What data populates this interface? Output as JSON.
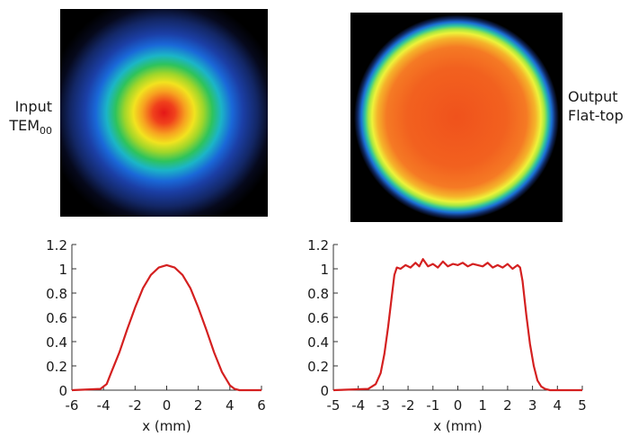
{
  "images": [
    {
      "label_line1": "Input",
      "label_line2_main": "TEM",
      "label_line2_sub": "00"
    },
    {
      "label_line1": "Output",
      "label_line2": "Flat-top"
    }
  ],
  "chart_data": [
    {
      "type": "line",
      "xlabel": "x (mm)",
      "xlim": [
        -6,
        6
      ],
      "ylim": [
        0,
        1.2
      ],
      "xticks": [
        -6,
        -4,
        -2,
        0,
        2,
        4,
        6
      ],
      "yticks": [
        0,
        0.2,
        0.4,
        0.6,
        0.8,
        1,
        1.2
      ],
      "ytick_labels": [
        "0",
        "0.2",
        "0.4",
        "0.6",
        "0.8",
        "1",
        "1.2"
      ],
      "line_color": "#d42020",
      "grid": false,
      "x": [
        -6,
        -4.2,
        -3.8,
        -3.5,
        -3,
        -2.5,
        -2,
        -1.5,
        -1,
        -0.5,
        0,
        0.5,
        1,
        1.5,
        2,
        2.5,
        3,
        3.5,
        4,
        4.3,
        4.6,
        6
      ],
      "y": [
        0,
        0.01,
        0.05,
        0.15,
        0.31,
        0.5,
        0.68,
        0.84,
        0.95,
        1.01,
        1.03,
        1.01,
        0.95,
        0.84,
        0.68,
        0.5,
        0.31,
        0.15,
        0.04,
        0.01,
        0,
        0
      ]
    },
    {
      "type": "line",
      "xlabel": "x (mm)",
      "xlim": [
        -5,
        5
      ],
      "ylim": [
        0,
        1.2
      ],
      "xticks": [
        -5,
        -4,
        -3,
        -2,
        -1,
        0,
        1,
        2,
        3,
        4,
        5
      ],
      "yticks": [
        0,
        0.2,
        0.4,
        0.6,
        0.8,
        1,
        1.2
      ],
      "ytick_labels": [
        "0",
        "0.2",
        "0.4",
        "0.6",
        "0.8",
        "1",
        "1.2"
      ],
      "line_color": "#d42020",
      "grid": false,
      "x": [
        -5,
        -3.6,
        -3.3,
        -3.1,
        -2.95,
        -2.8,
        -2.65,
        -2.55,
        -2.45,
        -2.3,
        -2.1,
        -1.9,
        -1.7,
        -1.55,
        -1.4,
        -1.2,
        -1,
        -0.8,
        -0.6,
        -0.4,
        -0.2,
        0,
        0.2,
        0.4,
        0.6,
        0.8,
        1,
        1.2,
        1.4,
        1.6,
        1.8,
        2,
        2.2,
        2.4,
        2.5,
        2.6,
        2.75,
        2.9,
        3.05,
        3.2,
        3.35,
        3.5,
        3.7,
        5
      ],
      "y": [
        0,
        0.01,
        0.05,
        0.14,
        0.3,
        0.52,
        0.78,
        0.95,
        1.01,
        1.0,
        1.03,
        1.01,
        1.05,
        1.02,
        1.08,
        1.02,
        1.04,
        1.01,
        1.06,
        1.02,
        1.04,
        1.03,
        1.05,
        1.02,
        1.04,
        1.03,
        1.02,
        1.05,
        1.01,
        1.03,
        1.01,
        1.04,
        1.0,
        1.03,
        1.01,
        0.9,
        0.62,
        0.38,
        0.2,
        0.08,
        0.03,
        0.01,
        0,
        0
      ]
    }
  ]
}
